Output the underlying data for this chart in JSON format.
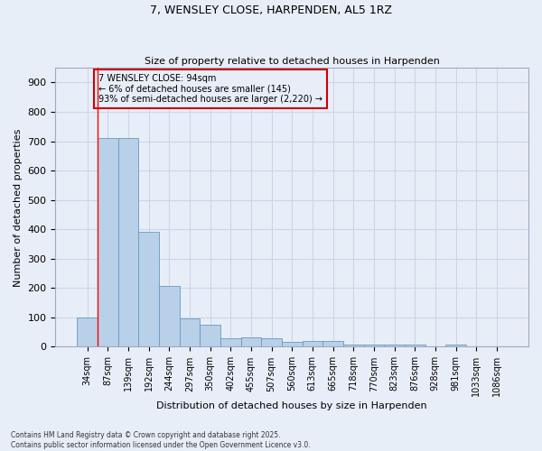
{
  "title1": "7, WENSLEY CLOSE, HARPENDEN, AL5 1RZ",
  "title2": "Size of property relative to detached houses in Harpenden",
  "xlabel": "Distribution of detached houses by size in Harpenden",
  "ylabel": "Number of detached properties",
  "categories": [
    "34sqm",
    "87sqm",
    "139sqm",
    "192sqm",
    "244sqm",
    "297sqm",
    "350sqm",
    "402sqm",
    "455sqm",
    "507sqm",
    "560sqm",
    "613sqm",
    "665sqm",
    "718sqm",
    "770sqm",
    "823sqm",
    "876sqm",
    "928sqm",
    "981sqm",
    "1033sqm",
    "1086sqm"
  ],
  "values": [
    100,
    710,
    710,
    390,
    208,
    98,
    75,
    30,
    32,
    30,
    17,
    20,
    20,
    8,
    7,
    7,
    8,
    0,
    7,
    0,
    0
  ],
  "bar_color": "#b8d0e8",
  "bar_edge_color": "#6899c0",
  "grid_color": "#ccd6e8",
  "bg_color": "#e8eef8",
  "annotation_line1": "7 WENSLEY CLOSE: 94sqm",
  "annotation_line2": "← 6% of detached houses are smaller (145)",
  "annotation_line3": "93% of semi-detached houses are larger (2,220) →",
  "annotation_box_color": "#cc0000",
  "ylim": [
    0,
    950
  ],
  "yticks": [
    0,
    100,
    200,
    300,
    400,
    500,
    600,
    700,
    800,
    900
  ],
  "footnote1": "Contains HM Land Registry data © Crown copyright and database right 2025.",
  "footnote2": "Contains public sector information licensed under the Open Government Licence v3.0."
}
